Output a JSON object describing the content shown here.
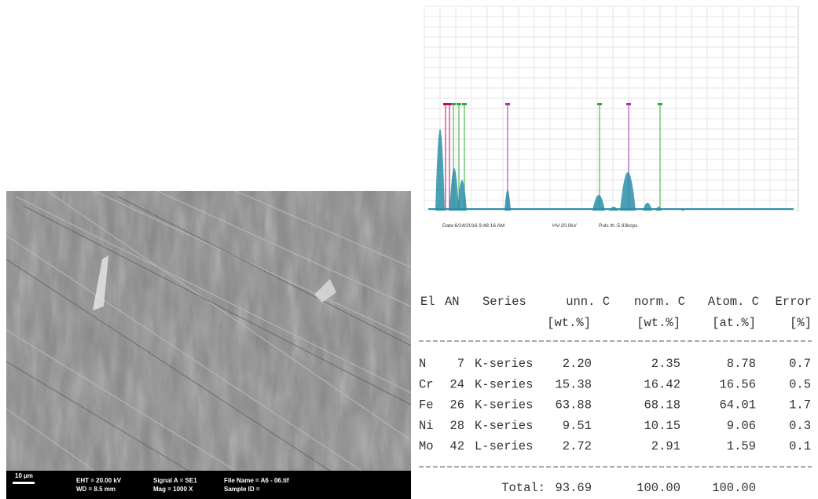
{
  "sem_image": {
    "scale_bar": "10 µm",
    "info": [
      [
        "EHT = 20.00 kV",
        "WD = 8.5 mm"
      ],
      [
        "Signal A = SE1",
        "Mag = 1000 X"
      ],
      [
        "File Name = A6 - 06.tif",
        "Sample ID ="
      ]
    ]
  },
  "spectrum": {
    "footer": [
      "Date:6/24/2016 9:48:16 AM",
      "HV:20.0kV",
      "Puls th.:5.93kcps"
    ]
  },
  "table": {
    "header": [
      [
        "El",
        "AN",
        "Series",
        "unn. C",
        "norm. C",
        "Atom. C",
        "Error"
      ],
      [
        "[wt.%]",
        "[wt.%]",
        "[at.%]",
        "[%]"
      ]
    ],
    "rows": [
      [
        "N",
        "7",
        "K-series",
        "2.20",
        "2.35",
        "8.78",
        "0.7"
      ],
      [
        "Cr",
        "24",
        "K-series",
        "15.38",
        "16.42",
        "16.56",
        "0.5"
      ],
      [
        "Fe",
        "26",
        "K-series",
        "63.88",
        "68.18",
        "64.01",
        "1.7"
      ],
      [
        "Ni",
        "28",
        "K-series",
        "9.51",
        "10.15",
        "9.06",
        "0.3"
      ],
      [
        "Mo",
        "42",
        "L-series",
        "2.72",
        "2.91",
        "1.59",
        "0.1"
      ]
    ],
    "total": [
      "Total:",
      "93.69",
      "100.00",
      "100.00"
    ]
  }
}
